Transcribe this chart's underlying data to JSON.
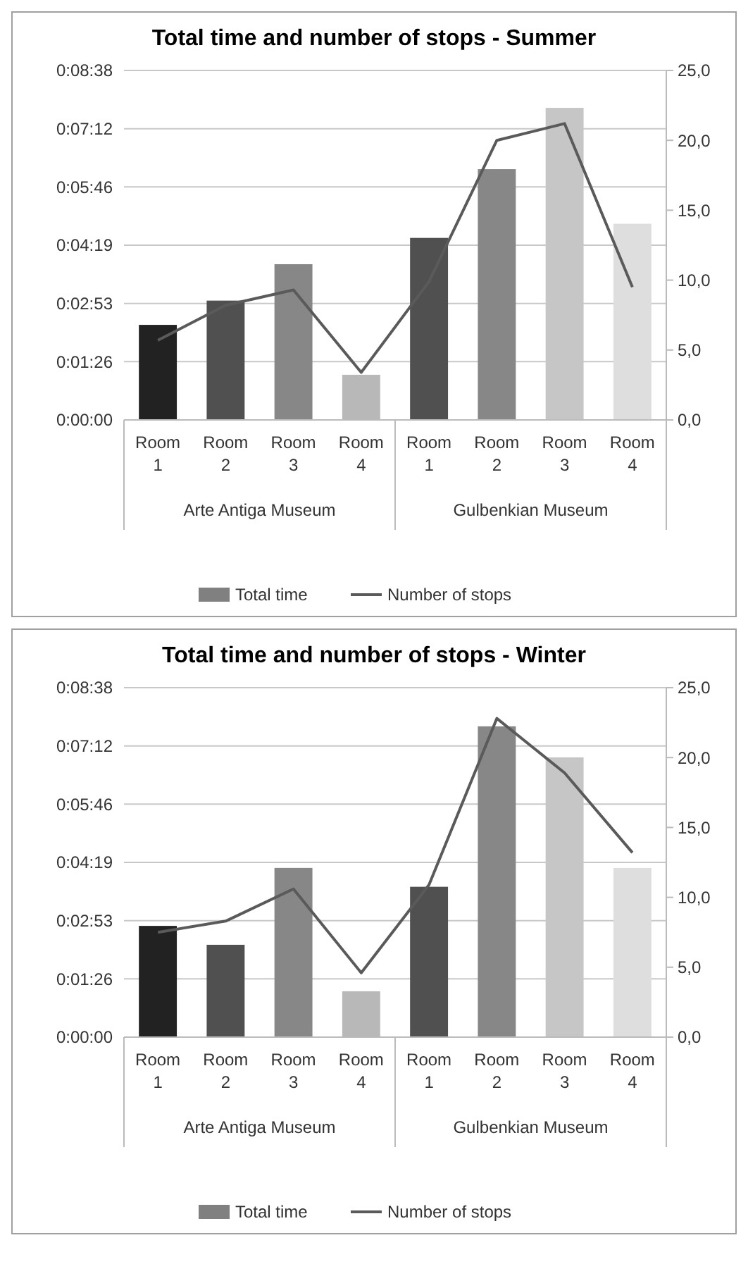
{
  "chart_data": [
    {
      "type": "bar",
      "title": "Total time and number of stops - Summer",
      "categories": [
        "Room 1",
        "Room 2",
        "Room 3",
        "Room 4",
        "Room 1",
        "Room 2",
        "Room 3",
        "Room 4"
      ],
      "annotations": [
        "Arte Antiga Museum",
        "Gulbenkian Museum"
      ],
      "series": [
        {
          "name": "Total time",
          "color": "#808080",
          "colors": [
            "#222222",
            "#505050",
            "#878787",
            "#b8b8b8",
            "#505050",
            "#878787",
            "#c6c6c6",
            "#dedede"
          ],
          "values": [
            141,
            177,
            231,
            67,
            270,
            372,
            463,
            291
          ]
        },
        {
          "name": "Number of stops",
          "type": "line",
          "axis": "y2",
          "color": "#5a5a5a",
          "values": [
            5.7,
            8.2,
            9.3,
            3.4,
            9.9,
            20.0,
            21.2,
            9.5
          ]
        }
      ],
      "ylim": [
        0,
        518.4
      ],
      "yticks": [
        {
          "value": 0,
          "label": "0:00:00"
        },
        {
          "value": 86.4,
          "label": "0:01:26"
        },
        {
          "value": 172.8,
          "label": "0:02:53"
        },
        {
          "value": 259.2,
          "label": "0:04:19"
        },
        {
          "value": 345.6,
          "label": "0:05:46"
        },
        {
          "value": 432,
          "label": "0:07:12"
        },
        {
          "value": 518.4,
          "label": "0:08:38"
        }
      ],
      "y2lim": [
        0,
        25
      ],
      "y2ticks": [
        {
          "value": 0,
          "label": "0,0"
        },
        {
          "value": 5,
          "label": "5,0"
        },
        {
          "value": 10,
          "label": "10,0"
        },
        {
          "value": 15,
          "label": "15,0"
        },
        {
          "value": 20,
          "label": "20,0"
        },
        {
          "value": 25,
          "label": "25,0"
        }
      ],
      "grid": "y",
      "legend": "bottom",
      "marker": "none"
    },
    {
      "type": "bar",
      "title": "Total time and number of stops - Winter",
      "categories": [
        "Room 1",
        "Room 2",
        "Room 3",
        "Room 4",
        "Room 1",
        "Room 2",
        "Room 3",
        "Room 4"
      ],
      "annotations": [
        "Arte Antiga Museum",
        "Gulbenkian Museum"
      ],
      "series": [
        {
          "name": "Total time",
          "color": "#808080",
          "colors": [
            "#222222",
            "#505050",
            "#878787",
            "#b8b8b8",
            "#505050",
            "#878787",
            "#c6c6c6",
            "#dedede"
          ],
          "values": [
            165,
            137,
            251,
            68,
            223,
            461,
            415,
            251
          ]
        },
        {
          "name": "Number of stops",
          "type": "line",
          "axis": "y2",
          "color": "#5a5a5a",
          "values": [
            7.5,
            8.3,
            10.6,
            4.6,
            10.9,
            22.8,
            18.9,
            13.2
          ]
        }
      ],
      "ylim": [
        0,
        518.4
      ],
      "yticks": [
        {
          "value": 0,
          "label": "0:00:00"
        },
        {
          "value": 86.4,
          "label": "0:01:26"
        },
        {
          "value": 172.8,
          "label": "0:02:53"
        },
        {
          "value": 259.2,
          "label": "0:04:19"
        },
        {
          "value": 345.6,
          "label": "0:05:46"
        },
        {
          "value": 432,
          "label": "0:07:12"
        },
        {
          "value": 518.4,
          "label": "0:08:38"
        }
      ],
      "y2lim": [
        0,
        25
      ],
      "y2ticks": [
        {
          "value": 0,
          "label": "0,0"
        },
        {
          "value": 5,
          "label": "5,0"
        },
        {
          "value": 10,
          "label": "10,0"
        },
        {
          "value": 15,
          "label": "15,0"
        },
        {
          "value": 20,
          "label": "20,0"
        },
        {
          "value": 25,
          "label": "25,0"
        }
      ],
      "grid": "y",
      "legend": "bottom",
      "marker": "none"
    }
  ]
}
